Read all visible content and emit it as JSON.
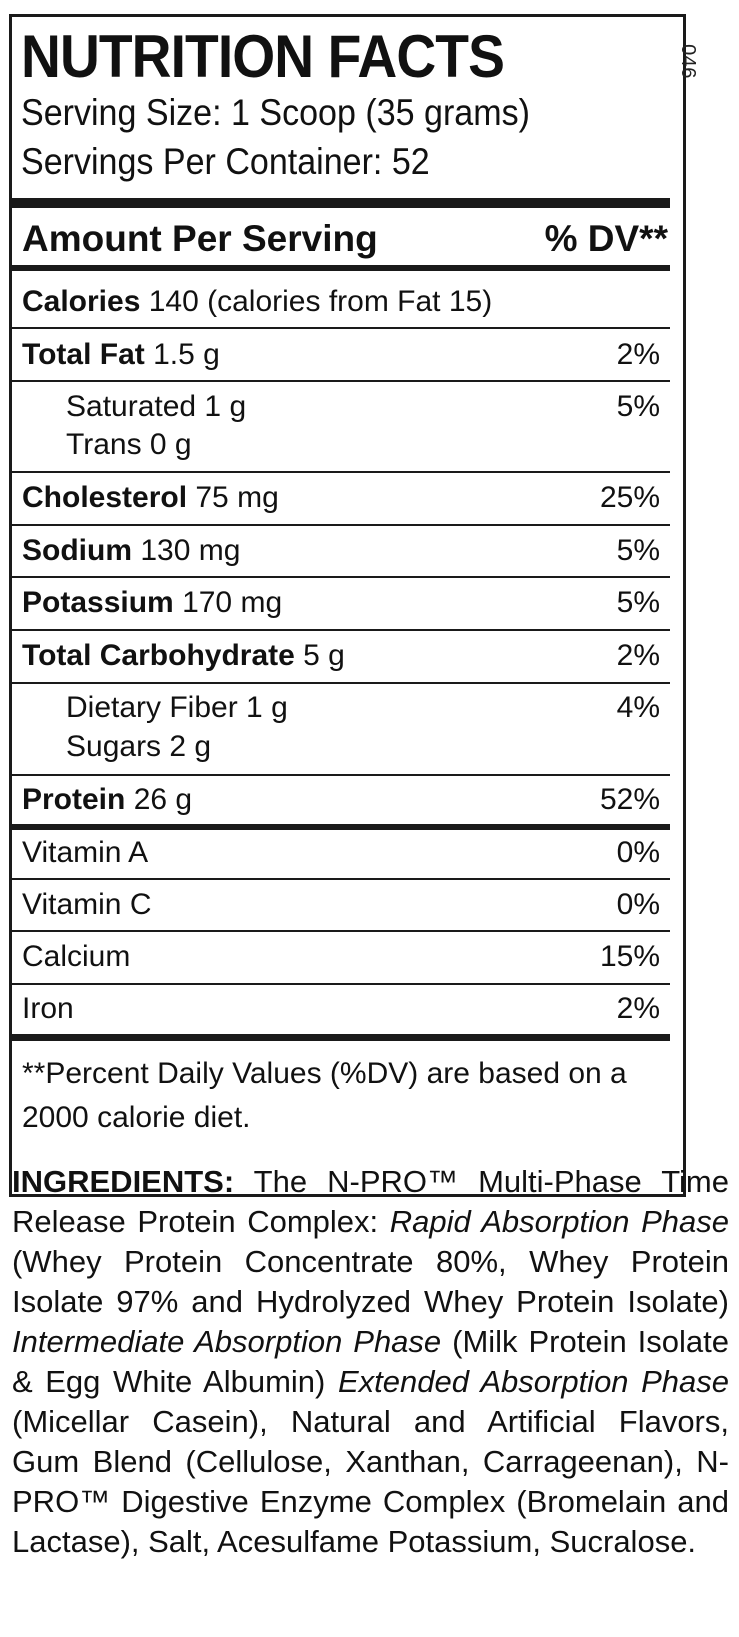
{
  "label": {
    "code": "046",
    "title": "NUTRITION FACTS",
    "serving_size": "Serving Size: 1 Scoop (35 grams)",
    "servings_per_container": "Servings Per Container: 52",
    "header_left": "Amount Per Serving",
    "header_right": "% DV**",
    "calories": {
      "name": "Calories",
      "value": "140 (calories from Fat 15)"
    },
    "total_fat": {
      "name": "Total Fat",
      "value": "1.5 g",
      "dv": "2%"
    },
    "saturated": {
      "name": "Saturated 1 g",
      "dv": "5%"
    },
    "trans": {
      "name": "Trans 0 g"
    },
    "cholesterol": {
      "name": "Cholesterol",
      "value": "75 mg",
      "dv": "25%"
    },
    "sodium": {
      "name": "Sodium",
      "value": "130 mg",
      "dv": "5%"
    },
    "potassium": {
      "name": "Potassium",
      "value": "170 mg",
      "dv": "5%"
    },
    "carbohydrate": {
      "name": "Total Carbohydrate",
      "value": "5 g",
      "dv": "2%"
    },
    "fiber": {
      "name": "Dietary Fiber 1 g",
      "dv": "4%"
    },
    "sugars": {
      "name": "Sugars 2 g"
    },
    "protein": {
      "name": "Protein",
      "value": "26 g",
      "dv": "52%"
    },
    "vitamin_a": {
      "name": "Vitamin A",
      "dv": "0%"
    },
    "vitamin_c": {
      "name": "Vitamin C",
      "dv": "0%"
    },
    "calcium": {
      "name": "Calcium",
      "dv": "15%"
    },
    "iron": {
      "name": "Iron",
      "dv": "2%"
    },
    "footnote": "**Percent Daily Values (%DV) are based on a 2000 calorie diet."
  },
  "ingredients": {
    "heading": "INGREDIENTS:",
    "t1": " The N-PRO™ Multi-Phase Time Release Protein Complex: ",
    "p1": "Rapid Absorption Phase",
    "t2": " (Whey Protein Concentrate 80%, Whey Protein Isolate 97% and Hydrolyzed Whey Protein Isolate) ",
    "p2": "Intermediate Absorption Phase",
    "t3": " (Milk Protein Isolate & Egg White Albumin) ",
    "p3": "Extended Absorption Phase",
    "t4": " (Micellar Casein), Natural and Artificial Flavors, Gum Blend (Cellulose, Xanthan, Carrageenan), N-PRO™ Digestive Enzyme Complex (Bromelain and Lactase), Salt, Acesulfame Potassium, Sucralose."
  }
}
